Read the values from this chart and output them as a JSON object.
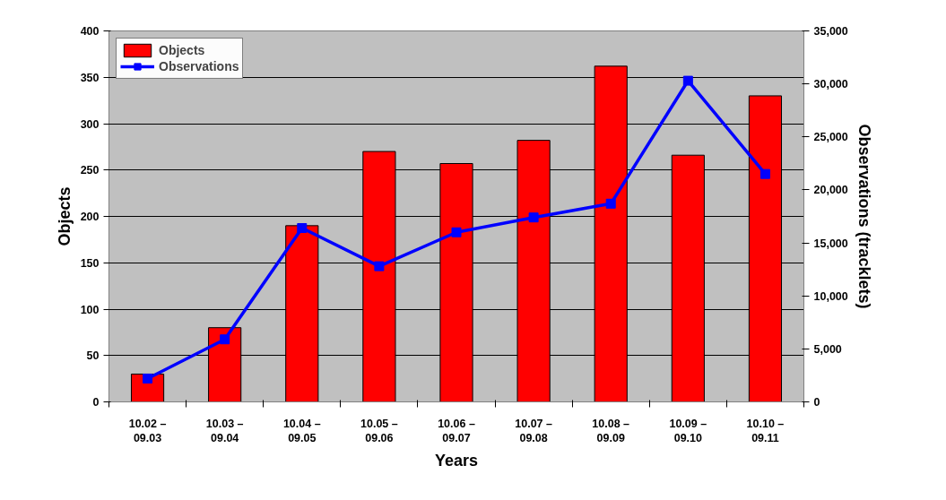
{
  "chart_data": {
    "type": "bar",
    "xlabel": "Years",
    "ylabel": "Objects",
    "y2label": "Observations (tracklets)",
    "categories": [
      "10.02 – 09.03",
      "10.03 – 09.04",
      "10.04 – 09.05",
      "10.05 – 09.06",
      "10.06 – 09.07",
      "10.07 – 09.08",
      "10.08 – 09.09",
      "10.09 – 09.10",
      "10.10 – 09.11"
    ],
    "series": [
      {
        "name": "Objects",
        "color": "#ff0000",
        "values": [
          30,
          80,
          190,
          270,
          257,
          282,
          362,
          266,
          330
        ]
      },
      {
        "name": "Observations",
        "type": "line",
        "axis": "y2",
        "color": "#0000ff",
        "marker": "square",
        "values": [
          2200,
          5900,
          16400,
          12800,
          16000,
          17400,
          18700,
          30300,
          21500
        ]
      }
    ],
    "ylim": [
      0,
      400
    ],
    "yticks": [
      0,
      50,
      100,
      150,
      200,
      250,
      300,
      350,
      400
    ],
    "y2lim": [
      0,
      35000
    ],
    "y2ticks": [
      0,
      {
        "value": 5000,
        "label": "5,000"
      },
      {
        "value": 10000,
        "label": "10,000"
      },
      {
        "value": 15000,
        "label": "15,000"
      },
      {
        "value": 20000,
        "label": "20,000"
      },
      {
        "value": 25000,
        "label": "25,000"
      },
      {
        "value": 30000,
        "label": "30,000"
      },
      {
        "value": 35000,
        "label": "35,000"
      }
    ],
    "grid": "y",
    "legend": "top left"
  }
}
